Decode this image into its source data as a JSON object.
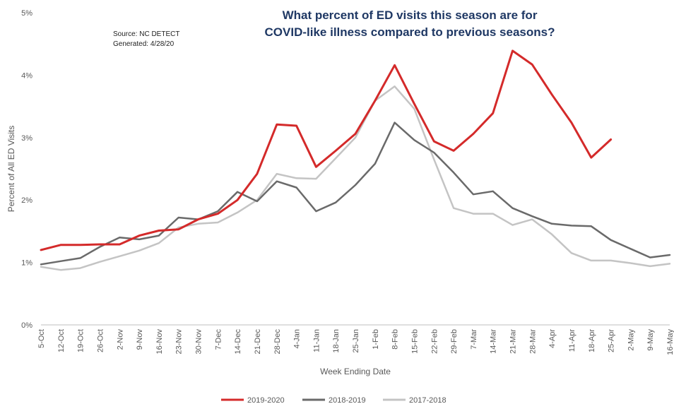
{
  "chart_data": {
    "type": "line",
    "title": "What percent of ED visits this season are for\nCOVID-like illness compared to previous seasons?",
    "annotations": [
      "Source: NC DETECT",
      "Generated: 4/28/20"
    ],
    "xlabel": "Week Ending Date",
    "ylabel": "Percent of All ED Visits",
    "ylim": [
      0,
      5
    ],
    "y_ticks": [
      "0%",
      "1%",
      "2%",
      "3%",
      "4%",
      "5%"
    ],
    "grid": false,
    "legend_position": "bottom",
    "categories": [
      "5-Oct",
      "12-Oct",
      "19-Oct",
      "26-Oct",
      "2-Nov",
      "9-Nov",
      "16-Nov",
      "23-Nov",
      "30-Nov",
      "7-Dec",
      "14-Dec",
      "21-Dec",
      "28-Dec",
      "4-Jan",
      "11-Jan",
      "18-Jan",
      "25-Jan",
      "1-Feb",
      "8-Feb",
      "15-Feb",
      "22-Feb",
      "29-Feb",
      "7-Mar",
      "14-Mar",
      "21-Mar",
      "28-Mar",
      "4-Apr",
      "11-Apr",
      "18-Apr",
      "25-Apr",
      "2-May",
      "9-May",
      "16-May"
    ],
    "series": [
      {
        "name": "2019-2020",
        "color": "#d42a2a",
        "values": [
          1.2,
          1.28,
          1.28,
          1.29,
          1.29,
          1.43,
          1.51,
          1.53,
          1.69,
          1.78,
          2.0,
          2.42,
          3.21,
          3.19,
          2.53,
          2.79,
          3.06,
          3.59,
          4.16,
          3.54,
          2.94,
          2.79,
          3.06,
          3.39,
          4.39,
          4.17,
          3.69,
          3.24,
          2.68,
          2.97,
          null,
          null,
          null
        ]
      },
      {
        "name": "2018-2019",
        "color": "#6a6a6a",
        "values": [
          0.97,
          1.02,
          1.07,
          1.25,
          1.4,
          1.37,
          1.43,
          1.72,
          1.69,
          1.82,
          2.13,
          1.98,
          2.3,
          2.2,
          1.82,
          1.96,
          2.24,
          2.58,
          3.24,
          2.96,
          2.76,
          2.44,
          2.09,
          2.14,
          1.87,
          1.74,
          1.62,
          1.59,
          1.58,
          1.36,
          1.22,
          1.08,
          1.12
        ]
      },
      {
        "name": "2017-2018",
        "color": "#c4c4c4",
        "values": [
          0.93,
          0.88,
          0.91,
          1.01,
          1.1,
          1.19,
          1.31,
          1.56,
          1.62,
          1.64,
          1.8,
          2.0,
          2.42,
          2.35,
          2.34,
          2.67,
          3.0,
          3.59,
          3.82,
          3.46,
          2.65,
          1.87,
          1.78,
          1.78,
          1.6,
          1.69,
          1.45,
          1.15,
          1.03,
          1.03,
          0.99,
          0.94,
          0.98
        ]
      }
    ]
  }
}
